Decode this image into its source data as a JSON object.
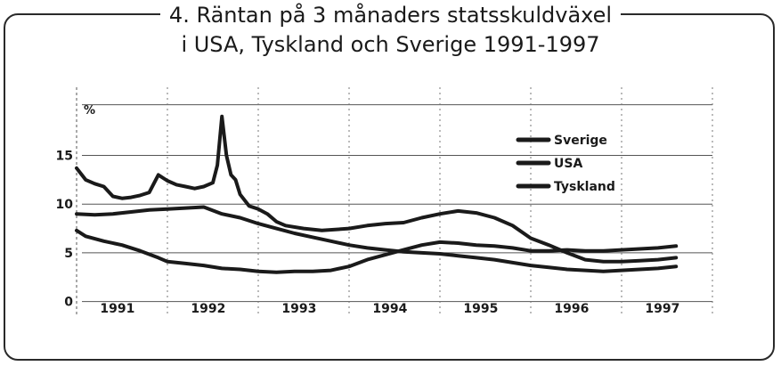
{
  "header": {
    "title_line1": "4.  Räntan på 3 månaders statsskuldväxel",
    "title_line2": "i USA, Tyskland och Sverige 1991-1997"
  },
  "chart_data": {
    "type": "line",
    "title": "4.  Räntan på 3 månaders statsskuldväxel i USA, Tyskland och Sverige 1991-1997",
    "unit_label": "%",
    "xlabel": "",
    "ylabel": "",
    "x_ticks": [
      "1991",
      "1992",
      "1993",
      "1994",
      "1995",
      "1996",
      "1997"
    ],
    "y_ticks": [
      "0",
      "5",
      "10",
      "15"
    ],
    "xlim": [
      1991.0,
      1998.0
    ],
    "ylim": [
      -1.5,
      22
    ],
    "grid": true,
    "legend_position": "top-right",
    "line_color": "#1a1a1a",
    "series": [
      {
        "name": "Sverige",
        "x": [
          1991.0,
          1991.1,
          1991.2,
          1991.3,
          1991.4,
          1991.5,
          1991.6,
          1991.7,
          1991.8,
          1991.9,
          1992.0,
          1992.1,
          1992.2,
          1992.3,
          1992.4,
          1992.5,
          1992.55,
          1992.6,
          1992.65,
          1992.7,
          1992.75,
          1992.8,
          1992.9,
          1993.0,
          1993.1,
          1993.2,
          1993.3,
          1993.5,
          1993.7,
          1994.0,
          1994.2,
          1994.4,
          1994.6,
          1994.8,
          1995.0,
          1995.2,
          1995.4,
          1995.6,
          1995.8,
          1996.0,
          1996.2,
          1996.4,
          1996.6,
          1996.8,
          1997.0,
          1997.2,
          1997.4,
          1997.6
        ],
        "y": [
          13.7,
          12.5,
          12.1,
          11.8,
          10.8,
          10.6,
          10.7,
          10.9,
          11.2,
          13.0,
          12.4,
          12.0,
          11.8,
          11.6,
          11.8,
          12.2,
          14.0,
          19.0,
          15.0,
          13.0,
          12.5,
          11.0,
          9.8,
          9.5,
          9.0,
          8.2,
          7.8,
          7.5,
          7.3,
          7.5,
          7.8,
          8.0,
          8.1,
          8.6,
          9.0,
          9.3,
          9.1,
          8.6,
          7.8,
          6.5,
          5.8,
          5.0,
          4.3,
          4.1,
          4.1,
          4.2,
          4.3,
          4.5
        ]
      },
      {
        "name": "USA",
        "x": [
          1991.0,
          1991.1,
          1991.3,
          1991.5,
          1991.7,
          1991.9,
          1992.0,
          1992.2,
          1992.4,
          1992.6,
          1992.8,
          1993.0,
          1993.2,
          1993.4,
          1993.6,
          1993.8,
          1994.0,
          1994.2,
          1994.4,
          1994.6,
          1994.8,
          1995.0,
          1995.2,
          1995.4,
          1995.6,
          1995.8,
          1996.0,
          1996.2,
          1996.4,
          1996.6,
          1996.8,
          1997.0,
          1997.2,
          1997.4,
          1997.6
        ],
        "y": [
          7.3,
          6.7,
          6.2,
          5.8,
          5.2,
          4.5,
          4.1,
          3.9,
          3.7,
          3.4,
          3.3,
          3.1,
          3.0,
          3.1,
          3.1,
          3.2,
          3.6,
          4.3,
          4.8,
          5.3,
          5.8,
          6.1,
          6.0,
          5.8,
          5.7,
          5.5,
          5.2,
          5.2,
          5.3,
          5.2,
          5.2,
          5.3,
          5.4,
          5.5,
          5.7
        ]
      },
      {
        "name": "Tyskland",
        "x": [
          1991.0,
          1991.2,
          1991.4,
          1991.6,
          1991.8,
          1992.0,
          1992.2,
          1992.4,
          1992.6,
          1992.8,
          1993.0,
          1993.2,
          1993.4,
          1993.6,
          1993.8,
          1994.0,
          1994.2,
          1994.4,
          1994.6,
          1994.8,
          1995.0,
          1995.2,
          1995.4,
          1995.6,
          1995.8,
          1996.0,
          1996.2,
          1996.4,
          1996.6,
          1996.8,
          1997.0,
          1997.2,
          1997.4,
          1997.6
        ],
        "y": [
          9.0,
          8.9,
          9.0,
          9.2,
          9.4,
          9.5,
          9.6,
          9.7,
          9.0,
          8.6,
          8.0,
          7.5,
          7.0,
          6.6,
          6.2,
          5.8,
          5.5,
          5.3,
          5.1,
          5.0,
          4.9,
          4.7,
          4.5,
          4.3,
          4.0,
          3.7,
          3.5,
          3.3,
          3.2,
          3.1,
          3.2,
          3.3,
          3.4,
          3.6
        ]
      }
    ]
  }
}
